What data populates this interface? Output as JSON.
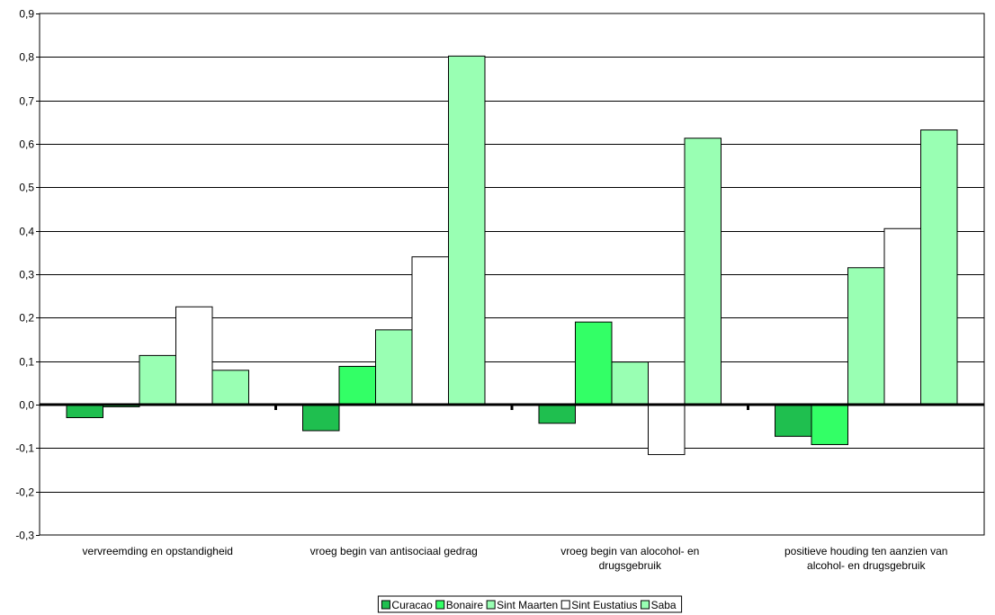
{
  "chart_data": {
    "type": "bar",
    "categories": [
      [
        "vervreemding en opstandigheid"
      ],
      [
        "vroeg begin van antisociaal gedrag"
      ],
      [
        "vroeg begin van alocohol- en",
        "drugsgebruik"
      ],
      [
        "positieve houding ten aanzien van",
        "alcohol- en drugsgebruik"
      ]
    ],
    "ylim": [
      -0.3,
      0.9
    ],
    "ytick_step": 0.1,
    "grid": true,
    "legend_position": "bottom",
    "series": [
      {
        "name": "Curacao",
        "color": "#1fbf4f",
        "values": [
          -0.03,
          -0.06,
          -0.043,
          -0.073
        ]
      },
      {
        "name": "Bonaire",
        "color": "#33ff66",
        "values": [
          -0.005,
          0.088,
          0.19,
          -0.092
        ]
      },
      {
        "name": "Sint Maarten",
        "color": "#99ffb3",
        "values": [
          0.113,
          0.172,
          0.098,
          0.315
        ]
      },
      {
        "name": "Sint Eustatius",
        "color": "#ffffff",
        "values": [
          0.225,
          0.34,
          -0.115,
          0.405
        ]
      },
      {
        "name": "Saba",
        "color": "#99ffb3",
        "values": [
          0.079,
          0.802,
          0.613,
          0.632
        ]
      }
    ]
  }
}
